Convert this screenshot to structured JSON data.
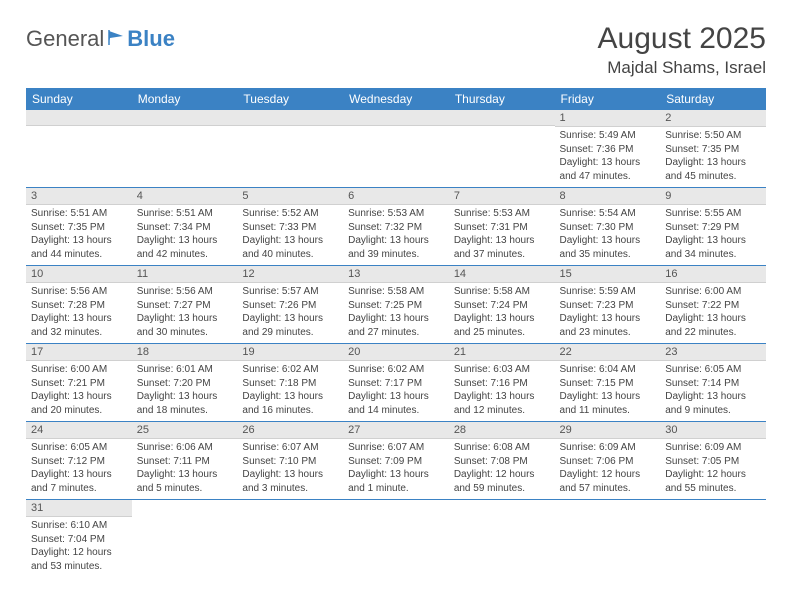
{
  "logo": {
    "part1": "General",
    "part2": "Blue"
  },
  "title": "August 2025",
  "location": "Majdal Shams, Israel",
  "headerColor": "#3b82c4",
  "dayHeaders": [
    "Sunday",
    "Monday",
    "Tuesday",
    "Wednesday",
    "Thursday",
    "Friday",
    "Saturday"
  ],
  "weeks": [
    [
      null,
      null,
      null,
      null,
      null,
      {
        "n": "1",
        "sr": "5:49 AM",
        "ss": "7:36 PM",
        "dl": "13 hours and 47 minutes."
      },
      {
        "n": "2",
        "sr": "5:50 AM",
        "ss": "7:35 PM",
        "dl": "13 hours and 45 minutes."
      }
    ],
    [
      {
        "n": "3",
        "sr": "5:51 AM",
        "ss": "7:35 PM",
        "dl": "13 hours and 44 minutes."
      },
      {
        "n": "4",
        "sr": "5:51 AM",
        "ss": "7:34 PM",
        "dl": "13 hours and 42 minutes."
      },
      {
        "n": "5",
        "sr": "5:52 AM",
        "ss": "7:33 PM",
        "dl": "13 hours and 40 minutes."
      },
      {
        "n": "6",
        "sr": "5:53 AM",
        "ss": "7:32 PM",
        "dl": "13 hours and 39 minutes."
      },
      {
        "n": "7",
        "sr": "5:53 AM",
        "ss": "7:31 PM",
        "dl": "13 hours and 37 minutes."
      },
      {
        "n": "8",
        "sr": "5:54 AM",
        "ss": "7:30 PM",
        "dl": "13 hours and 35 minutes."
      },
      {
        "n": "9",
        "sr": "5:55 AM",
        "ss": "7:29 PM",
        "dl": "13 hours and 34 minutes."
      }
    ],
    [
      {
        "n": "10",
        "sr": "5:56 AM",
        "ss": "7:28 PM",
        "dl": "13 hours and 32 minutes."
      },
      {
        "n": "11",
        "sr": "5:56 AM",
        "ss": "7:27 PM",
        "dl": "13 hours and 30 minutes."
      },
      {
        "n": "12",
        "sr": "5:57 AM",
        "ss": "7:26 PM",
        "dl": "13 hours and 29 minutes."
      },
      {
        "n": "13",
        "sr": "5:58 AM",
        "ss": "7:25 PM",
        "dl": "13 hours and 27 minutes."
      },
      {
        "n": "14",
        "sr": "5:58 AM",
        "ss": "7:24 PM",
        "dl": "13 hours and 25 minutes."
      },
      {
        "n": "15",
        "sr": "5:59 AM",
        "ss": "7:23 PM",
        "dl": "13 hours and 23 minutes."
      },
      {
        "n": "16",
        "sr": "6:00 AM",
        "ss": "7:22 PM",
        "dl": "13 hours and 22 minutes."
      }
    ],
    [
      {
        "n": "17",
        "sr": "6:00 AM",
        "ss": "7:21 PM",
        "dl": "13 hours and 20 minutes."
      },
      {
        "n": "18",
        "sr": "6:01 AM",
        "ss": "7:20 PM",
        "dl": "13 hours and 18 minutes."
      },
      {
        "n": "19",
        "sr": "6:02 AM",
        "ss": "7:18 PM",
        "dl": "13 hours and 16 minutes."
      },
      {
        "n": "20",
        "sr": "6:02 AM",
        "ss": "7:17 PM",
        "dl": "13 hours and 14 minutes."
      },
      {
        "n": "21",
        "sr": "6:03 AM",
        "ss": "7:16 PM",
        "dl": "13 hours and 12 minutes."
      },
      {
        "n": "22",
        "sr": "6:04 AM",
        "ss": "7:15 PM",
        "dl": "13 hours and 11 minutes."
      },
      {
        "n": "23",
        "sr": "6:05 AM",
        "ss": "7:14 PM",
        "dl": "13 hours and 9 minutes."
      }
    ],
    [
      {
        "n": "24",
        "sr": "6:05 AM",
        "ss": "7:12 PM",
        "dl": "13 hours and 7 minutes."
      },
      {
        "n": "25",
        "sr": "6:06 AM",
        "ss": "7:11 PM",
        "dl": "13 hours and 5 minutes."
      },
      {
        "n": "26",
        "sr": "6:07 AM",
        "ss": "7:10 PM",
        "dl": "13 hours and 3 minutes."
      },
      {
        "n": "27",
        "sr": "6:07 AM",
        "ss": "7:09 PM",
        "dl": "13 hours and 1 minute."
      },
      {
        "n": "28",
        "sr": "6:08 AM",
        "ss": "7:08 PM",
        "dl": "12 hours and 59 minutes."
      },
      {
        "n": "29",
        "sr": "6:09 AM",
        "ss": "7:06 PM",
        "dl": "12 hours and 57 minutes."
      },
      {
        "n": "30",
        "sr": "6:09 AM",
        "ss": "7:05 PM",
        "dl": "12 hours and 55 minutes."
      }
    ],
    [
      {
        "n": "31",
        "sr": "6:10 AM",
        "ss": "7:04 PM",
        "dl": "12 hours and 53 minutes."
      },
      null,
      null,
      null,
      null,
      null,
      null
    ]
  ],
  "labels": {
    "sunrise": "Sunrise: ",
    "sunset": "Sunset: ",
    "daylight": "Daylight: "
  }
}
